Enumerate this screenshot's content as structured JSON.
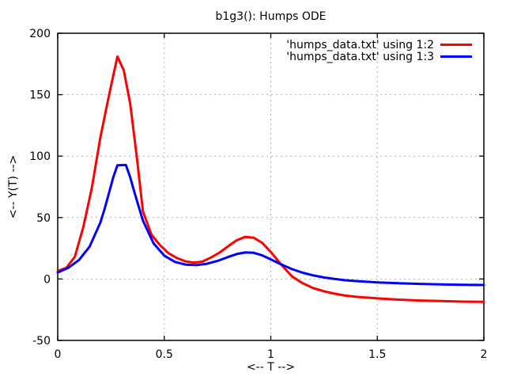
{
  "chart_data": {
    "type": "line",
    "title": "b1g3(): Humps ODE",
    "xlabel": "<-- T -->",
    "ylabel": "<-- Y(T) -->",
    "xlim": [
      0,
      2
    ],
    "ylim": [
      -50,
      200
    ],
    "xticks": {
      "values": [
        0,
        0.5,
        1,
        1.5,
        2
      ],
      "labels": [
        "0",
        "0.5",
        "1",
        "1.5",
        "2"
      ]
    },
    "yticks": {
      "values": [
        -50,
        0,
        50,
        100,
        150,
        200
      ],
      "labels": [
        "-50",
        "0",
        "50",
        "100",
        "150",
        "200"
      ]
    },
    "grid": true,
    "grid_style": "dashed",
    "legend_position": "top-right-inside",
    "series": [
      {
        "name": "'humps_data.txt' using 1:2",
        "color": "#ff0000",
        "x": [
          0,
          0.04,
          0.08,
          0.12,
          0.16,
          0.2,
          0.24,
          0.28,
          0.31,
          0.34,
          0.37,
          0.4,
          0.44,
          0.48,
          0.52,
          0.56,
          0.6,
          0.64,
          0.68,
          0.72,
          0.76,
          0.8,
          0.84,
          0.88,
          0.92,
          0.96,
          1.0,
          1.05,
          1.1,
          1.15,
          1.2,
          1.25,
          1.3,
          1.35,
          1.4,
          1.5,
          1.6,
          1.7,
          1.8,
          1.9,
          2.0
        ],
        "y": [
          6.5,
          9,
          18,
          42,
          74,
          115,
          149,
          181,
          170,
          143,
          101,
          55,
          36,
          27.5,
          21,
          17,
          14.4,
          13.3,
          14.2,
          17.5,
          21.5,
          26.7,
          31.5,
          34.3,
          33.6,
          29.4,
          22,
          11.5,
          2,
          -3.5,
          -7.5,
          -10,
          -12,
          -13.5,
          -14.5,
          -15.8,
          -16.8,
          -17.5,
          -18,
          -18.4,
          -18.6
        ]
      },
      {
        "name": "'humps_data.txt' using 1:3",
        "color": "#0000ff",
        "x": [
          0,
          0.05,
          0.1,
          0.15,
          0.2,
          0.22,
          0.24,
          0.26,
          0.28,
          0.32,
          0.34,
          0.36,
          0.4,
          0.45,
          0.5,
          0.55,
          0.6,
          0.65,
          0.7,
          0.75,
          0.8,
          0.84,
          0.88,
          0.92,
          0.96,
          1.0,
          1.05,
          1.1,
          1.15,
          1.2,
          1.25,
          1.3,
          1.35,
          1.4,
          1.5,
          1.6,
          1.7,
          1.8,
          1.9,
          2.0
        ],
        "y": [
          5.2,
          9.1,
          15.5,
          26.4,
          45.9,
          57.0,
          69.6,
          82.4,
          92.5,
          92.8,
          83.0,
          70.6,
          47.5,
          28.9,
          19.0,
          13.9,
          11.7,
          11.3,
          12.4,
          14.7,
          17.9,
          20.3,
          21.6,
          21.3,
          19.2,
          16.0,
          11.8,
          8.0,
          5.1,
          2.9,
          1.2,
          0.0,
          -1.0,
          -1.7,
          -2.8,
          -3.5,
          -4.0,
          -4.4,
          -4.7,
          -4.9
        ]
      }
    ],
    "colors": {
      "background": "#ffffff",
      "axis": "#000000",
      "grid": "#b0b0b0",
      "text": "#000000"
    }
  }
}
